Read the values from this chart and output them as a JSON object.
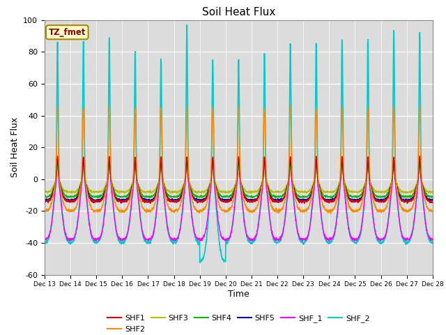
{
  "title": "Soil Heat Flux",
  "xlabel": "Time",
  "ylabel": "Soil Heat Flux",
  "ylim": [
    -60,
    100
  ],
  "xlim": [
    0,
    15
  ],
  "background_color": "#dcdcdc",
  "tz_label": "TZ_fmet",
  "tz_label_color": "#8b0000",
  "tz_box_color": "#ffffcc",
  "series": {
    "SHF1": {
      "color": "#dd0000",
      "lw": 1.0
    },
    "SHF2": {
      "color": "#ff8c00",
      "lw": 1.0
    },
    "SHF3": {
      "color": "#bbbb00",
      "lw": 1.0
    },
    "SHF4": {
      "color": "#00bb00",
      "lw": 1.0
    },
    "SHF5": {
      "color": "#0000bb",
      "lw": 1.0
    },
    "SHF_1": {
      "color": "#ff00ff",
      "lw": 1.0
    },
    "SHF_2": {
      "color": "#00cccc",
      "lw": 1.3
    }
  },
  "xtick_labels": [
    "Dec 13",
    "Dec 14",
    "Dec 15",
    "Dec 16",
    "Dec 17",
    "Dec 18",
    "Dec 19",
    "Dec 20",
    "Dec 21",
    "Dec 22",
    "Dec 23",
    "Dec 24",
    "Dec 25",
    "Dec 26",
    "Dec 27",
    "Dec 28"
  ],
  "ytick_labels": [
    -60,
    -40,
    -20,
    0,
    20,
    40,
    60,
    80,
    100
  ],
  "legend_order": [
    "SHF1",
    "SHF2",
    "SHF3",
    "SHF4",
    "SHF5",
    "SHF_1",
    "SHF_2"
  ]
}
